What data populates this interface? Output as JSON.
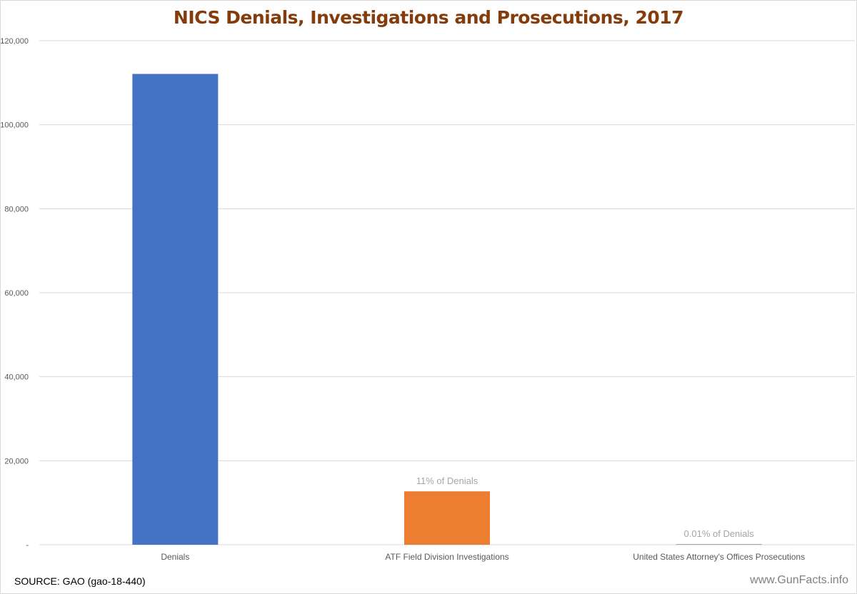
{
  "chart_data": {
    "type": "bar",
    "title": "NICS Denials, Investigations and Prosecutions, 2017",
    "categories": [
      "Denials",
      "ATF Field Division Investigations",
      "United States Attorney's Offices Prosecutions"
    ],
    "values": [
      112090,
      12710,
      12
    ],
    "data_labels": [
      "",
      "11% of Denials",
      "0.01% of Denials"
    ],
    "bar_colors": [
      "#4472c4",
      "#ed7d31",
      "#a5a5a5"
    ],
    "ylim": [
      0,
      120000
    ],
    "yticks": [
      0,
      20000,
      40000,
      60000,
      80000,
      100000,
      120000
    ],
    "ytick_labels": [
      "-",
      "20,000",
      "40,000",
      "60,000",
      "80,000",
      "100,000",
      "120,000"
    ],
    "grid": true,
    "xlabel": "",
    "ylabel": ""
  },
  "footer": {
    "source": "SOURCE:  GAO (gao-18-440)",
    "watermark": "www.GunFacts.info"
  },
  "colors": {
    "title": "#843c0c",
    "gridline": "#d9d9d9",
    "axis_text": "#595959",
    "data_label": "#a6a6a6"
  }
}
